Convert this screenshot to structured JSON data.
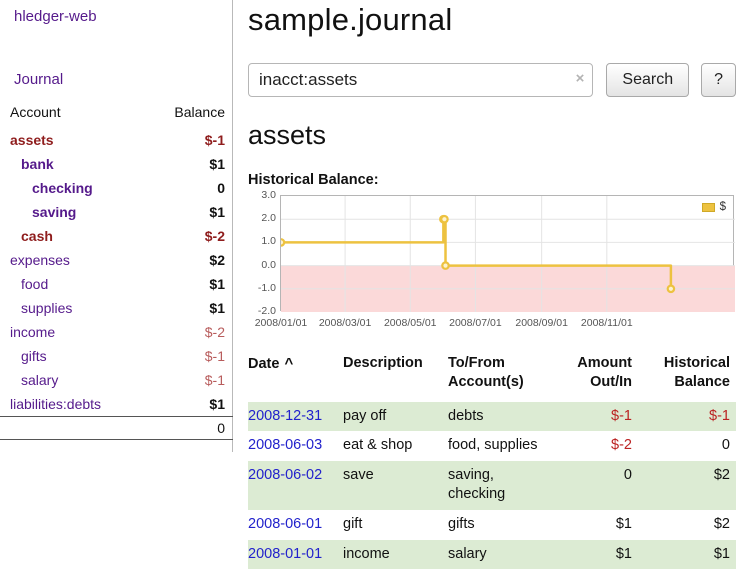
{
  "sidebar": {
    "brand": "hledger-web",
    "journal_link": "Journal",
    "accounts_header": {
      "account": "Account",
      "balance": "Balance"
    },
    "accounts": [
      {
        "name": "assets",
        "indent": 0,
        "bold": true,
        "negative_name": true,
        "balance": "$-1",
        "negative": true,
        "dim": false
      },
      {
        "name": "bank",
        "indent": 1,
        "bold": true,
        "negative_name": false,
        "balance": "$1",
        "negative": false,
        "dim": false
      },
      {
        "name": "checking",
        "indent": 2,
        "bold": true,
        "negative_name": false,
        "balance": "0",
        "negative": false,
        "dim": false
      },
      {
        "name": "saving",
        "indent": 2,
        "bold": true,
        "negative_name": false,
        "balance": "$1",
        "negative": false,
        "dim": false
      },
      {
        "name": "cash",
        "indent": 1,
        "bold": true,
        "negative_name": true,
        "balance": "$-2",
        "negative": true,
        "dim": false
      },
      {
        "name": "expenses",
        "indent": 0,
        "bold": false,
        "negative_name": false,
        "balance": "$2",
        "negative": false,
        "dim": false
      },
      {
        "name": "food",
        "indent": 1,
        "bold": false,
        "negative_name": false,
        "balance": "$1",
        "negative": false,
        "dim": false
      },
      {
        "name": "supplies",
        "indent": 1,
        "bold": false,
        "negative_name": false,
        "balance": "$1",
        "negative": false,
        "dim": false
      },
      {
        "name": "income",
        "indent": 0,
        "bold": false,
        "negative_name": false,
        "balance": "$-2",
        "negative": true,
        "dim": true
      },
      {
        "name": "gifts",
        "indent": 1,
        "bold": false,
        "negative_name": false,
        "balance": "$-1",
        "negative": true,
        "dim": true
      },
      {
        "name": "salary",
        "indent": 1,
        "bold": false,
        "negative_name": false,
        "balance": "$-1",
        "negative": true,
        "dim": true
      },
      {
        "name": "liabilities:debts",
        "indent": 0,
        "bold": false,
        "negative_name": false,
        "balance": "$1",
        "negative": false,
        "dim": false
      }
    ],
    "total": "0"
  },
  "main": {
    "title": "sample.journal",
    "search": {
      "value": "inacct:assets",
      "clear_icon": "×",
      "button": "Search",
      "help_button": "?"
    },
    "account_heading": "assets",
    "chart_label": "Historical Balance:"
  },
  "chart_data": {
    "type": "line",
    "title": "Historical Balance:",
    "step": true,
    "x_range": [
      "2008-01-01",
      "2009-03-01"
    ],
    "ylim": [
      -2.0,
      3.0
    ],
    "yticks": [
      3.0,
      2.0,
      1.0,
      0.0,
      -1.0,
      -2.0
    ],
    "xticks": [
      {
        "date": "2008-01-01",
        "label": "2008/01/01"
      },
      {
        "date": "2008-03-01",
        "label": "2008/03/01"
      },
      {
        "date": "2008-05-01",
        "label": "2008/05/01"
      },
      {
        "date": "2008-07-01",
        "label": "2008/07/01"
      },
      {
        "date": "2008-09-01",
        "label": "2008/09/01"
      },
      {
        "date": "2008-11-01",
        "label": "2008/11/01"
      }
    ],
    "series": [
      {
        "name": "$",
        "color": "#edc240",
        "points": [
          {
            "date": "2008-01-01",
            "value": 1
          },
          {
            "date": "2008-06-01",
            "value": 2
          },
          {
            "date": "2008-06-02",
            "value": 2
          },
          {
            "date": "2008-06-03",
            "value": 0
          },
          {
            "date": "2008-12-31",
            "value": -1
          }
        ]
      }
    ],
    "legend": {
      "label": "$",
      "position": "top-right"
    },
    "negative_fill": "#fbd9d9",
    "grid": true
  },
  "register": {
    "headers": {
      "date": "Date",
      "sort_icon": "^",
      "description": "Description",
      "accounts": "To/From Account(s)",
      "amount": "Amount Out/In",
      "balance": "Historical Balance"
    },
    "rows": [
      {
        "date": "2008-12-31",
        "description": "pay off",
        "accounts": "debts",
        "amount": "$-1",
        "amount_negative": true,
        "balance": "$-1",
        "balance_negative": true
      },
      {
        "date": "2008-06-03",
        "description": "eat & shop",
        "accounts": "food, supplies",
        "amount": "$-2",
        "amount_negative": true,
        "balance": "0",
        "balance_negative": false
      },
      {
        "date": "2008-06-02",
        "description": "save",
        "accounts": "saving, checking",
        "amount": "0",
        "amount_negative": false,
        "balance": "$2",
        "balance_negative": false
      },
      {
        "date": "2008-06-01",
        "description": "gift",
        "accounts": "gifts",
        "amount": "$1",
        "amount_negative": false,
        "balance": "$2",
        "balance_negative": false
      },
      {
        "date": "2008-01-01",
        "description": "income",
        "accounts": "salary",
        "amount": "$1",
        "amount_negative": false,
        "balance": "$1",
        "balance_negative": false
      }
    ]
  },
  "colors": {
    "link_purple": "#551a8b",
    "link_blue": "#2222cc",
    "negative_strong": "#8f1d1d",
    "negative": "#bb2222",
    "negative_dim": "#b85c5c",
    "row_green": "#dcebd3",
    "chart_line": "#edc240",
    "chart_negative_region": "#fbd9d9"
  }
}
